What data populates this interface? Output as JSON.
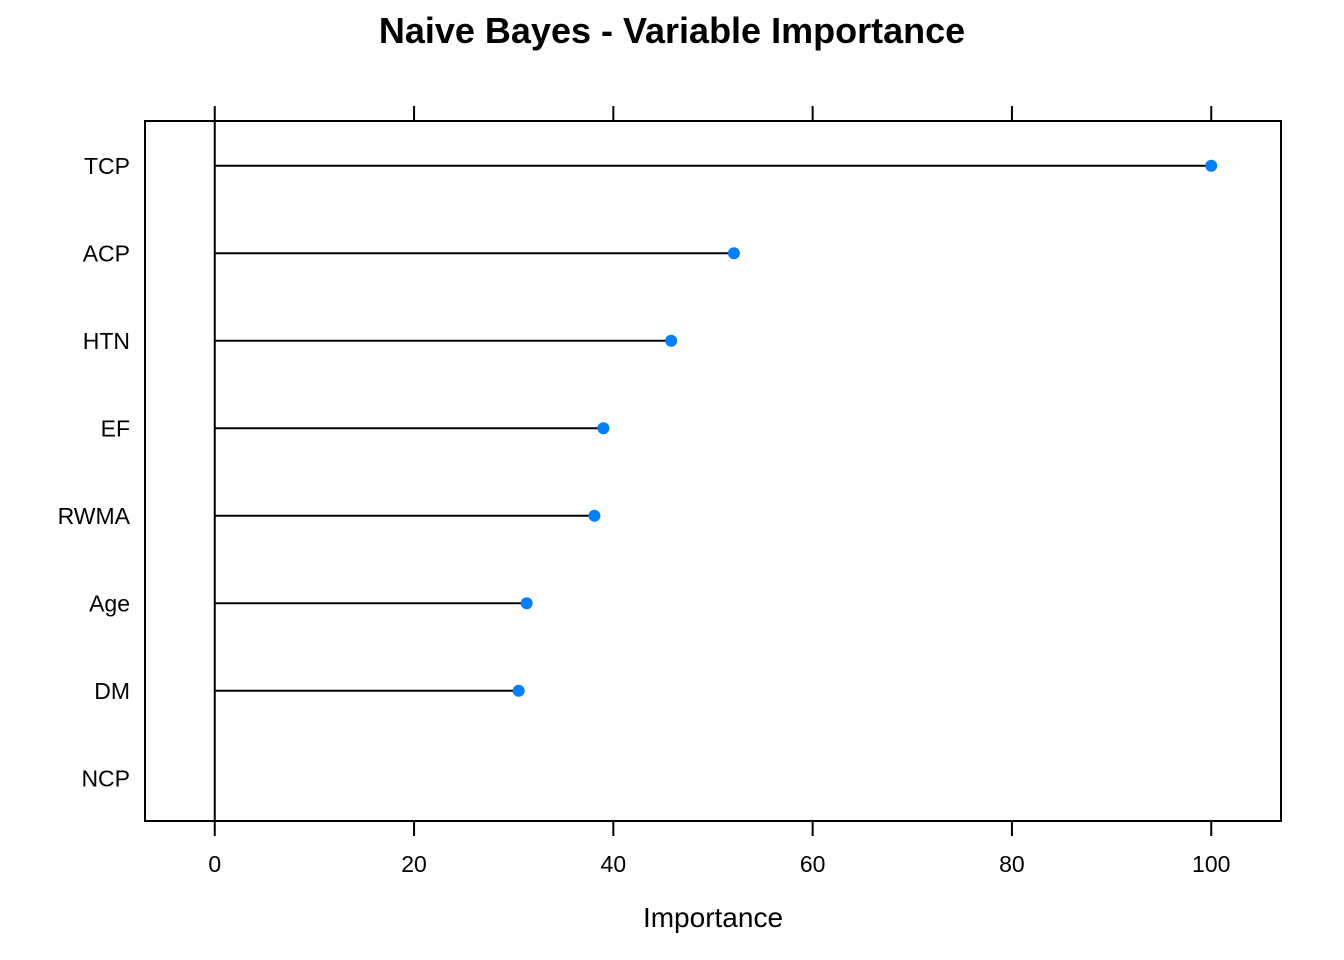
{
  "chart_data": {
    "type": "lollipop",
    "title": "Naive Bayes - Variable Importance",
    "xlabel": "Importance",
    "ylabel": "",
    "categories": [
      "TCP",
      "ACP",
      "HTN",
      "EF",
      "RWMA",
      "Age",
      "DM",
      "NCP"
    ],
    "values": [
      100,
      52.1,
      45.8,
      39.0,
      38.1,
      31.3,
      30.5,
      0
    ],
    "xlim": [
      -7,
      107
    ],
    "xticks": [
      0,
      20,
      40,
      60,
      80,
      100
    ],
    "grid": false,
    "point_color": "#0080ff",
    "line_color": "#000000"
  }
}
